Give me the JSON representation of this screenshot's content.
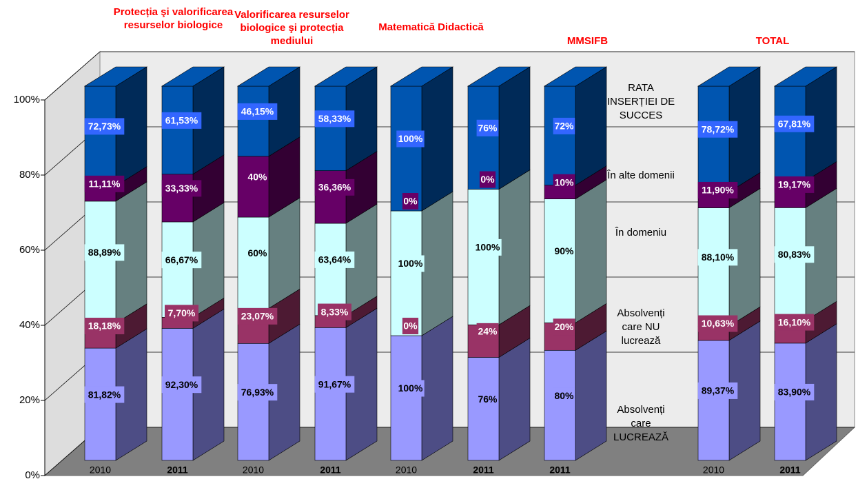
{
  "chart_data": {
    "type": "bar",
    "stacking": "percent",
    "groups": [
      {
        "label": "Protecția şi valorificarea resurselor biologice",
        "count": 2
      },
      {
        "label": "Valorificarea resurselor biologice şi protecția mediului",
        "count": 2
      },
      {
        "label": "Matematică Didactică",
        "count": 2
      },
      {
        "label": "MMSIFB",
        "count": 1
      },
      {
        "label": "TOTAL",
        "count": 2
      }
    ],
    "categories": [
      "2010",
      "2011",
      "2010",
      "2011",
      "2010",
      "2011",
      "2011",
      "2010",
      "2011"
    ],
    "category_bold": [
      false,
      true,
      false,
      true,
      false,
      true,
      true,
      false,
      true
    ],
    "series": [
      {
        "name": "Absolvenți care LUCREAZĂ",
        "color": "#9999ff",
        "side_color": "#4d4d85",
        "label_bg": "#9999ff",
        "label_text": "#000000",
        "values": [
          81.82,
          92.3,
          76.93,
          91.67,
          100,
          76,
          80,
          89.37,
          83.9
        ],
        "value_labels": [
          "81,82%",
          "92,30%",
          "76,93%",
          "91,67%",
          "100%",
          "76%",
          "80%",
          "89,37%",
          "83,90%"
        ]
      },
      {
        "name": "Absolvenți care NU lucrează",
        "color": "#993366",
        "side_color": "#4d1a33",
        "label_bg": "#993366",
        "label_text": "#ffffff",
        "values": [
          18.18,
          7.7,
          23.07,
          8.33,
          0,
          24,
          20,
          10.63,
          16.1
        ],
        "value_labels": [
          "18,18%",
          "7,70%",
          "23,07%",
          "8,33%",
          "0%",
          "24%",
          "20%",
          "10,63%",
          "16,10%"
        ]
      },
      {
        "name": "În domeniu",
        "color": "#ccffff",
        "side_color": "#668080",
        "label_bg": "#ccffff",
        "label_text": "#000000",
        "values": [
          88.89,
          66.67,
          60,
          63.64,
          100,
          100,
          90,
          88.1,
          80.83
        ],
        "value_labels": [
          "88,89%",
          "66,67%",
          "60%",
          "63,64%",
          "100%",
          "100%",
          "90%",
          "88,10%",
          "80,83%"
        ]
      },
      {
        "name": "În alte domenii",
        "color": "#660066",
        "side_color": "#330033",
        "label_bg": "#660066",
        "label_text": "#ffffff",
        "values": [
          11.11,
          33.33,
          40,
          36.36,
          0,
          0,
          10,
          11.9,
          19.17
        ],
        "value_labels": [
          "11,11%",
          "33,33%",
          "40%",
          "36,36%",
          "0%",
          "0%",
          "10%",
          "11,90%",
          "19,17%"
        ]
      },
      {
        "name": "RATA INSERȚIEI DE SUCCES",
        "color": "#0055b0",
        "side_color": "#002a58",
        "label_bg": "#3366ff",
        "label_text": "#ffffff",
        "values": [
          72.73,
          61.53,
          46.15,
          58.33,
          100,
          76,
          72,
          78.72,
          67.81
        ],
        "value_labels": [
          "72,73%",
          "61,53%",
          "46,15%",
          "58,33%",
          "100%",
          "76%",
          "72%",
          "78,72%",
          "67,81%"
        ]
      }
    ],
    "ylim": [
      0,
      100
    ],
    "yticks": [
      {
        "value": 0,
        "label": "0%"
      },
      {
        "value": 20,
        "label": "20%"
      },
      {
        "value": 40,
        "label": "40%"
      },
      {
        "value": 60,
        "label": "60%"
      },
      {
        "value": 80,
        "label": "80%"
      },
      {
        "value": 100,
        "label": "100%"
      }
    ],
    "grid": true
  }
}
